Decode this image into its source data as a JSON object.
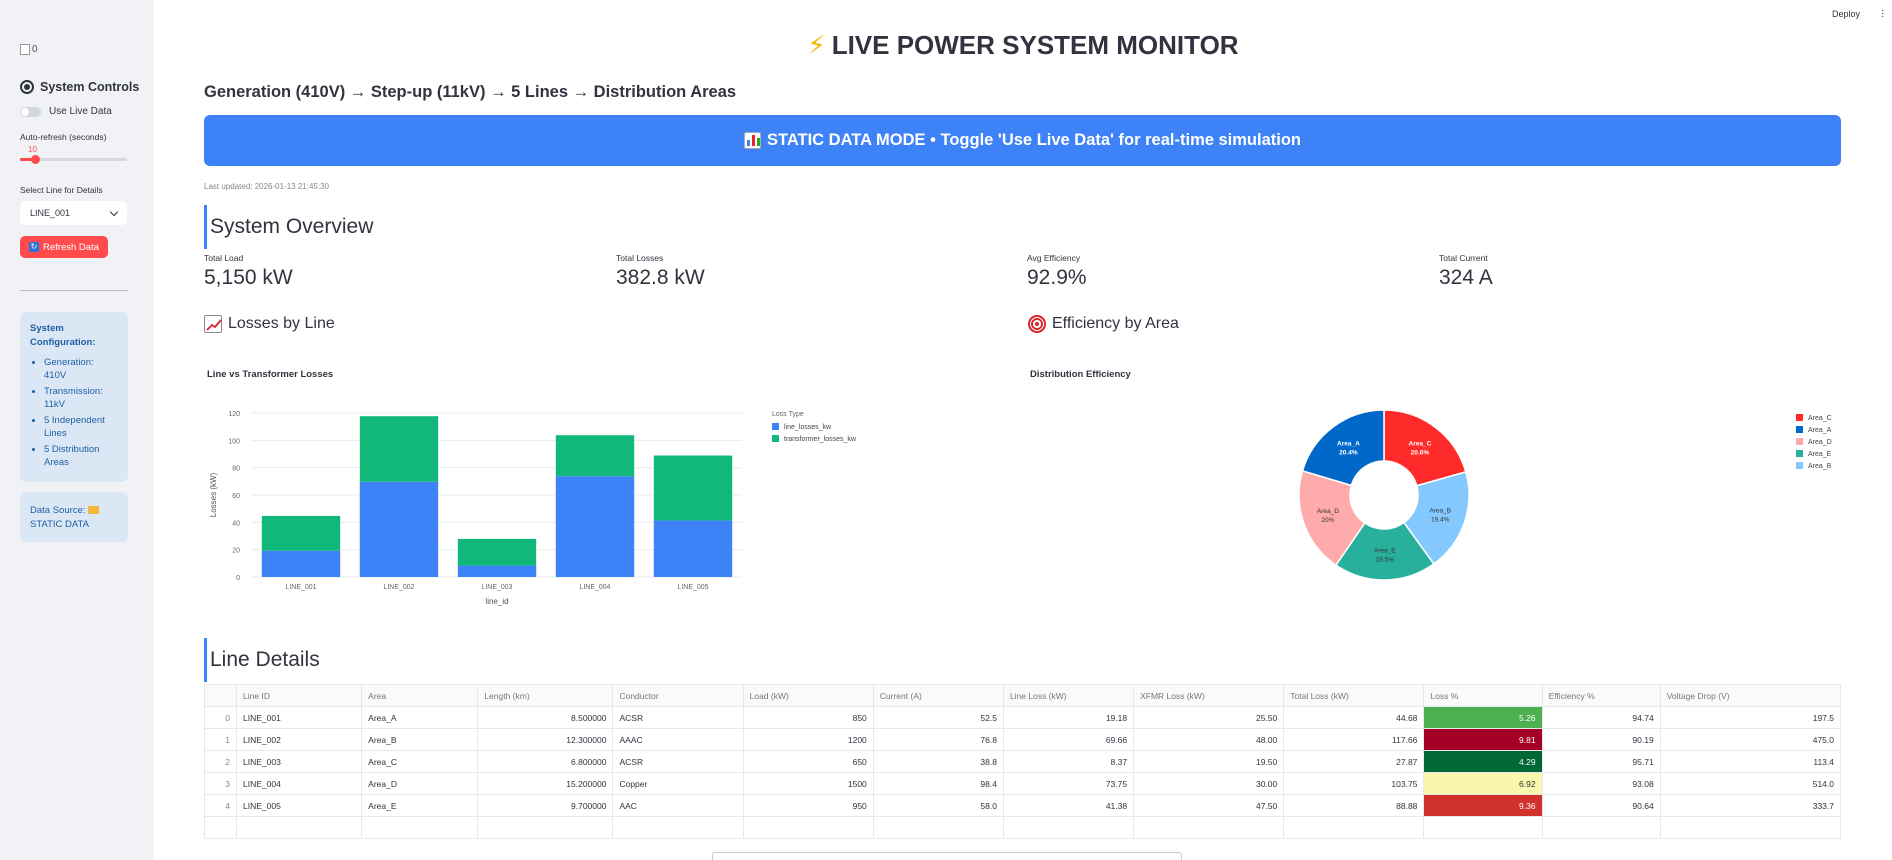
{
  "sidebar": {
    "image_alt": "0",
    "title": "System Controls",
    "live_toggle_label": "Use Live Data",
    "auto_refresh_label": "Auto-refresh (seconds)",
    "auto_refresh_value": "10",
    "auto_refresh_fraction": 0.14,
    "select_label": "Select Line for Details",
    "select_value": "LINE_001",
    "refresh_button": "Refresh Data",
    "config_title": "System Configuration:",
    "config_items": [
      "Generation: 410V",
      "Transmission: 11kV",
      "5 Independent Lines",
      "5 Distribution Areas"
    ],
    "data_source_label": "Data Source:",
    "data_source_value": "STATIC DATA"
  },
  "header": {
    "deploy": "Deploy",
    "menu_icon": "more-vertical-icon"
  },
  "main": {
    "title": "LIVE POWER SYSTEM MONITOR",
    "subtitle": "Generation (410V) → Step-up (11kV) → 5 Lines → Distribution Areas",
    "banner": "STATIC DATA MODE • Toggle 'Use Live Data' for real-time simulation",
    "last_updated": "Last updated: 2026-01-13 21:45:30",
    "overview_title": "System Overview",
    "metrics": [
      {
        "label": "Total Load",
        "value": "5,150 kW"
      },
      {
        "label": "Total Losses",
        "value": "382.8 kW"
      },
      {
        "label": "Avg Efficiency",
        "value": "92.9%"
      },
      {
        "label": "Total Current",
        "value": "324 A"
      }
    ],
    "losses_heading": "Losses by Line",
    "efficiency_heading": "Efficiency by Area",
    "details_title": "Line Details"
  },
  "chart_data": [
    {
      "type": "bar",
      "title": "Line vs Transformer Losses",
      "xlabel": "line_id",
      "ylabel": "Losses (kW)",
      "ylim": [
        0,
        120
      ],
      "yticks": [
        0,
        20,
        40,
        60,
        80,
        100,
        120
      ],
      "categories": [
        "LINE_001",
        "LINE_002",
        "LINE_003",
        "LINE_004",
        "LINE_005"
      ],
      "legend_title": "Loss Type",
      "series": [
        {
          "name": "line_losses_kw",
          "color": "#3d82f6",
          "values": [
            19.18,
            69.66,
            8.37,
            73.75,
            41.38
          ]
        },
        {
          "name": "transformer_losses_kw",
          "color": "#12b879",
          "values": [
            25.5,
            48.0,
            19.5,
            30.0,
            47.5
          ]
        }
      ],
      "stacked": true,
      "legend_position": "right"
    },
    {
      "type": "pie",
      "title": "Distribution Efficiency",
      "hole": 0.4,
      "slices": [
        {
          "label": "Area_C",
          "value": 20.6,
          "text": "20.6%",
          "color": "#ff2b2b"
        },
        {
          "label": "Area_B",
          "value": 19.4,
          "text": "19.4%",
          "color": "#83c9ff"
        },
        {
          "label": "Area_E",
          "value": 19.5,
          "text": "19.5%",
          "color": "#29b09d"
        },
        {
          "label": "Area_D",
          "value": 20.0,
          "text": "20%",
          "color": "#ffabab"
        },
        {
          "label": "Area_A",
          "value": 20.4,
          "text": "20.4%",
          "color": "#0068c9"
        }
      ],
      "legend": [
        "Area_C",
        "Area_A",
        "Area_D",
        "Area_E",
        "Area_B"
      ],
      "legend_position": "right"
    }
  ],
  "table": {
    "columns": [
      "",
      "Line ID",
      "Area",
      "Length (km)",
      "Conductor",
      "Load (kW)",
      "Current (A)",
      "Line Loss (kW)",
      "XFMR Loss (kW)",
      "Total Loss (kW)",
      "Loss %",
      "Efficiency %",
      "Voltage Drop (V)"
    ],
    "rows": [
      [
        "0",
        "LINE_001",
        "Area_A",
        "8.500000",
        "ACSR",
        "850",
        "52.5",
        "19.18",
        "25.50",
        "44.68",
        "5.26",
        "94.74",
        "197.5"
      ],
      [
        "1",
        "LINE_002",
        "Area_B",
        "12.300000",
        "AAAC",
        "1200",
        "76.8",
        "69.66",
        "48.00",
        "117.66",
        "9.81",
        "90.19",
        "475.0"
      ],
      [
        "2",
        "LINE_003",
        "Area_C",
        "6.800000",
        "ACSR",
        "650",
        "38.8",
        "8.37",
        "19.50",
        "27.87",
        "4.29",
        "95.71",
        "113.4"
      ],
      [
        "3",
        "LINE_004",
        "Area_D",
        "15.200000",
        "Copper",
        "1500",
        "98.4",
        "73.75",
        "30.00",
        "103.75",
        "6.92",
        "93.08",
        "514.0"
      ],
      [
        "4",
        "LINE_005",
        "Area_E",
        "9.700000",
        "AAC",
        "950",
        "58.0",
        "41.38",
        "47.50",
        "88.88",
        "9.36",
        "90.64",
        "333.7"
      ]
    ],
    "loss_colors": [
      {
        "bg": "#4caf50",
        "fg": "#fff"
      },
      {
        "bg": "#a50026",
        "fg": "#fff"
      },
      {
        "bg": "#006837",
        "fg": "#fff"
      },
      {
        "bg": "#f9f7ae",
        "fg": "#333"
      },
      {
        "bg": "#d1312b",
        "fg": "#fff"
      }
    ]
  },
  "colors": {
    "primary": "#ff4b4b",
    "banner": "#3d82f6",
    "info_bg": "#dce7f5"
  }
}
